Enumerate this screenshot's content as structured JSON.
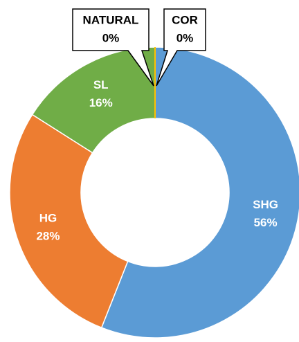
{
  "chart_data": {
    "type": "donut",
    "categories": [
      "SHG",
      "HG",
      "SL",
      "NATURAL",
      "COR"
    ],
    "values": [
      56,
      28,
      16,
      0,
      0
    ],
    "value_labels": [
      "56%",
      "28%",
      "16%",
      "0%",
      "0%"
    ],
    "colors": [
      "#5b9bd5",
      "#ed7d31",
      "#70ad47",
      "#a5a5a5",
      "#ffc000"
    ]
  }
}
